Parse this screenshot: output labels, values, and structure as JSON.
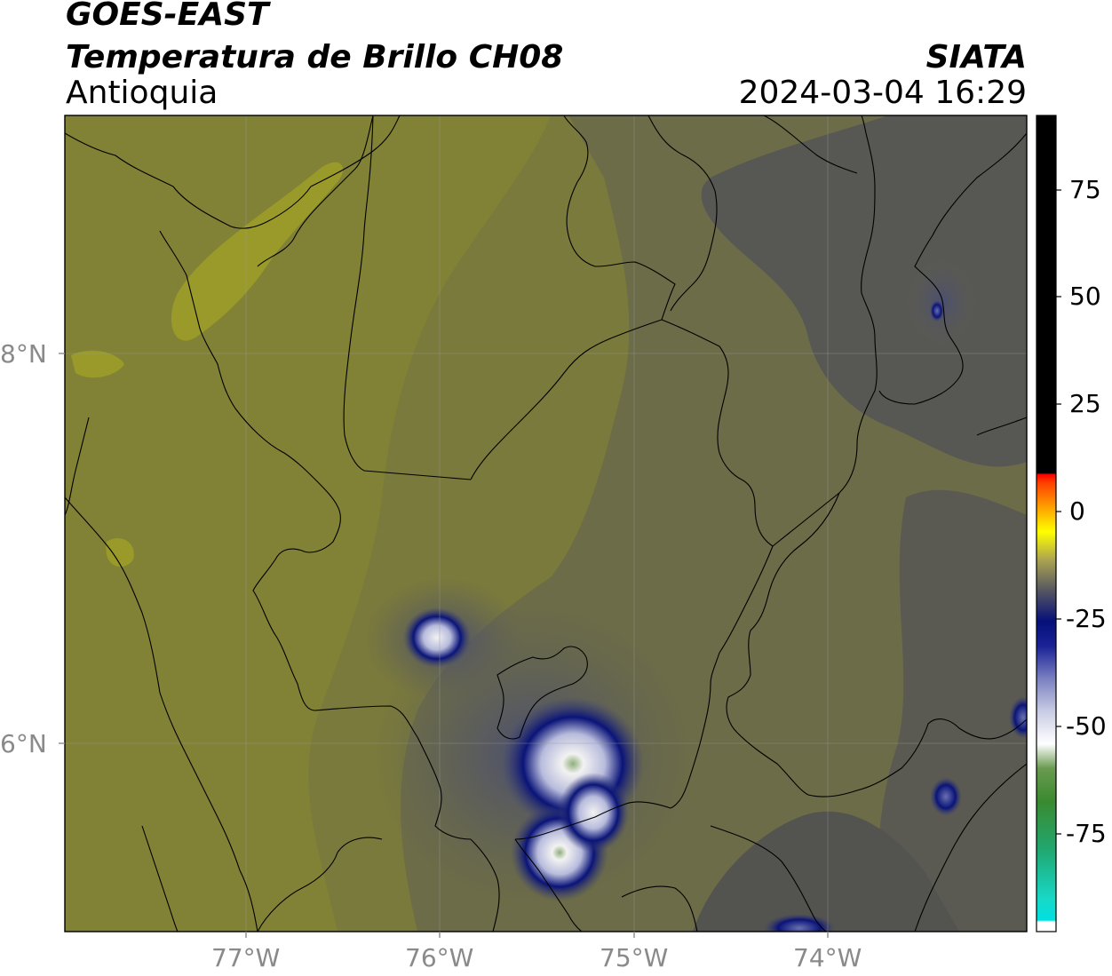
{
  "header": {
    "satellite": "GOES-EAST",
    "product": "Temperatura de Brillo CH08",
    "region": "Antioquia",
    "agency": "SIATA",
    "datetime": "2024-03-04 16:29"
  },
  "map": {
    "lat_ticks": [
      "8°N",
      "6°N"
    ],
    "lon_ticks": [
      "77°W",
      "76°W",
      "75°W",
      "74°W"
    ],
    "colors": {
      "background": "#828236",
      "warm_yellow": "#9a9a2a",
      "olive": "#7a7a3c",
      "grey_olive": "#6c6c48",
      "grey": "#565656",
      "navy": "#0a1478",
      "light_blue": "#8f96c8",
      "white": "#f2f2f2",
      "green": "#8fae7a"
    }
  },
  "colorbar": {
    "tick_labels": [
      "75",
      "50",
      "25",
      "0",
      "-25",
      "-50",
      "-75"
    ],
    "tick_values": [
      75,
      50,
      25,
      0,
      -25,
      -50,
      -75
    ],
    "range": [
      -93,
      92
    ]
  }
}
